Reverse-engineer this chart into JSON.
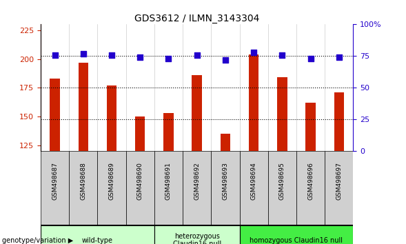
{
  "title": "GDS3612 / ILMN_3143304",
  "samples": [
    "GSM498687",
    "GSM498688",
    "GSM498689",
    "GSM498690",
    "GSM498691",
    "GSM498692",
    "GSM498693",
    "GSM498694",
    "GSM498695",
    "GSM498696",
    "GSM498697"
  ],
  "count_values": [
    183,
    197,
    177,
    150,
    153,
    186,
    135,
    204,
    184,
    162,
    171
  ],
  "percentile_values": [
    76,
    77,
    76,
    74,
    73,
    76,
    72,
    78,
    76,
    73,
    74
  ],
  "ylim_left": [
    120,
    230
  ],
  "ylim_right": [
    0,
    100
  ],
  "yticks_left": [
    125,
    150,
    175,
    200,
    225
  ],
  "yticks_right": [
    0,
    25,
    50,
    75,
    100
  ],
  "bar_color": "#cc2200",
  "dot_color": "#2200cc",
  "left_tick_color": "#cc2200",
  "right_tick_color": "#2200cc",
  "bar_width": 0.35,
  "dot_size": 30,
  "group_defs": [
    {
      "start": 0,
      "end": 3,
      "label": "wild-type",
      "color": "#ccffcc"
    },
    {
      "start": 4,
      "end": 6,
      "label": "heterozygous\nClaudin16 null",
      "color": "#ccffcc"
    },
    {
      "start": 7,
      "end": 10,
      "label": "homozygous Claudin16 null",
      "color": "#44ee44"
    }
  ],
  "sample_col_color": "#d0d0d0",
  "grid_dotted_color": "#000000"
}
